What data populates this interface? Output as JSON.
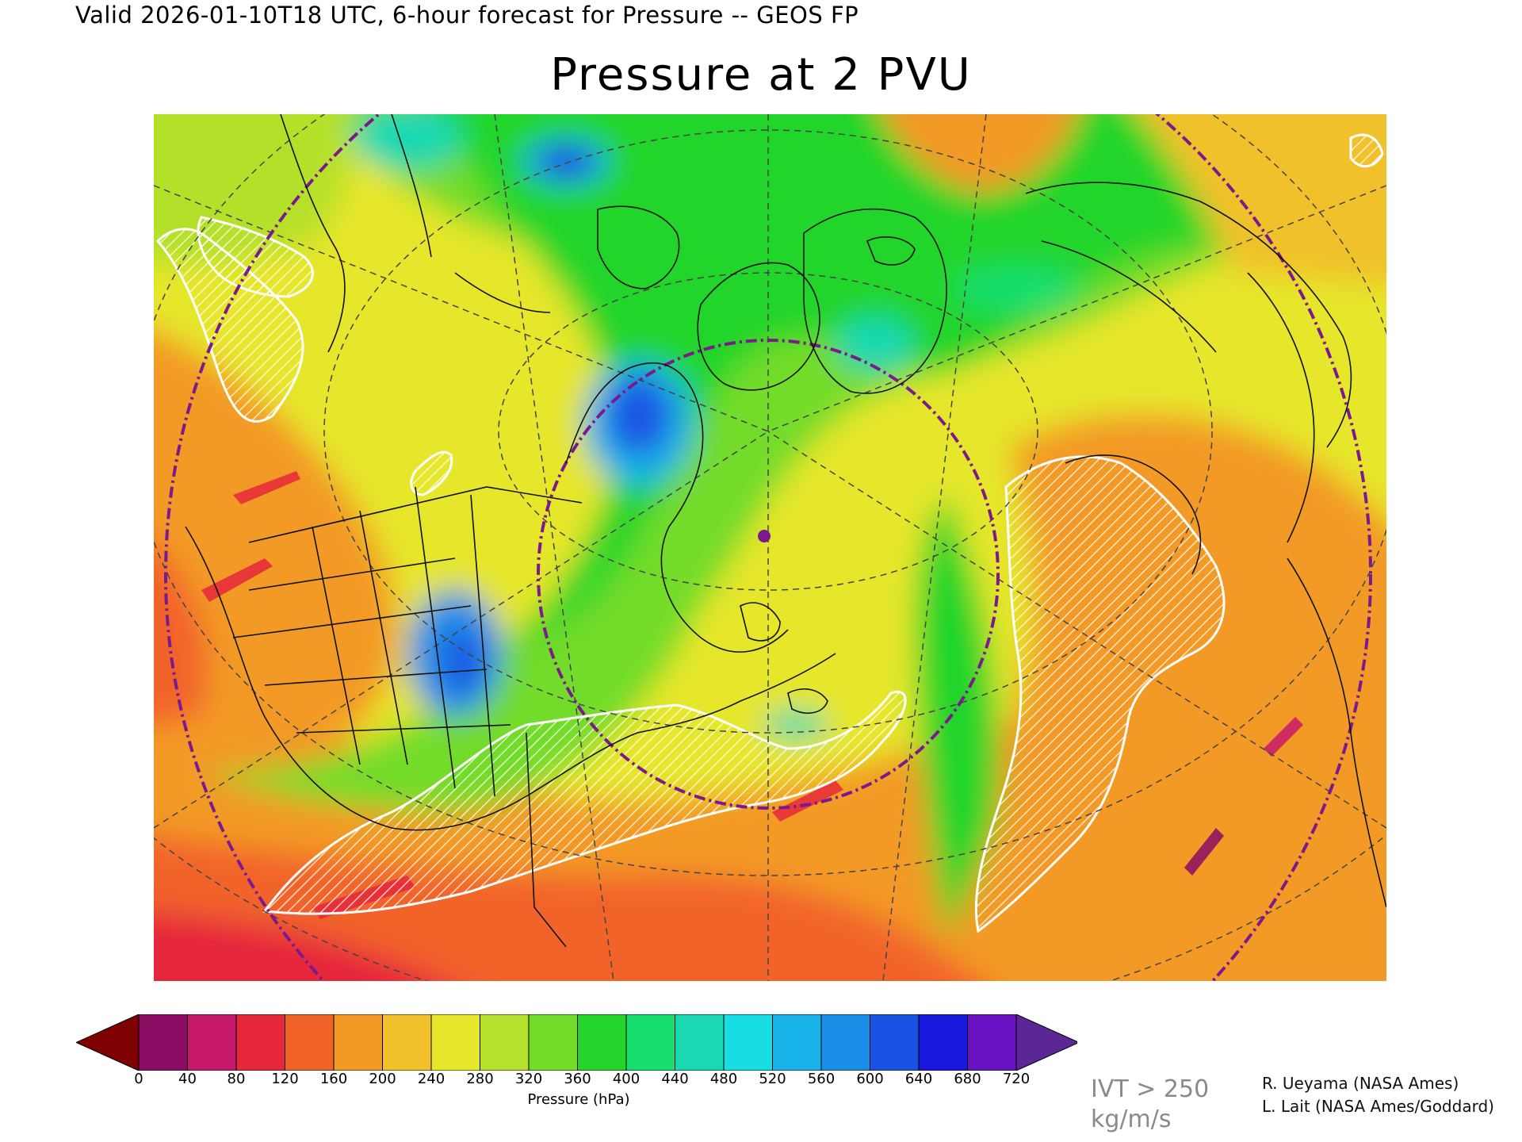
{
  "header": {
    "valid_line": "Valid 2026-01-10T18 UTC, 6-hour forecast for Pressure -- GEOS FP",
    "title": "Pressure at 2 PVU"
  },
  "map": {
    "hatch_color": "#ffffff",
    "boundary_color": "#111111",
    "graticule_color": "#444444",
    "circle_color": "#7a1a8c",
    "marker_color": "#7a1a8c"
  },
  "colorbar": {
    "title": "Pressure (hPa)",
    "under_color": "#7f0000",
    "over_color": "#5b2796",
    "colors": [
      "#8a0c63",
      "#c7196b",
      "#e6283a",
      "#f2632a",
      "#f39a26",
      "#f0c12a",
      "#e6e62a",
      "#b5e02c",
      "#73dc2a",
      "#23d52a",
      "#18de6e",
      "#19d8b2",
      "#18dde3",
      "#16b2e8",
      "#1b8ee8",
      "#1a52e3",
      "#1a18dc",
      "#6a13c5"
    ],
    "labels": [
      "0",
      "40",
      "80",
      "120",
      "160",
      "200",
      "240",
      "280",
      "320",
      "360",
      "400",
      "440",
      "480",
      "520",
      "560",
      "600",
      "640",
      "680",
      "720"
    ]
  },
  "legend": {
    "ivt_line1": "IVT > 250",
    "ivt_line2": "kg/m/s"
  },
  "credits": {
    "line1": "R. Ueyama (NASA Ames)",
    "line2": "L. Lait (NASA Ames/Goddard)"
  }
}
